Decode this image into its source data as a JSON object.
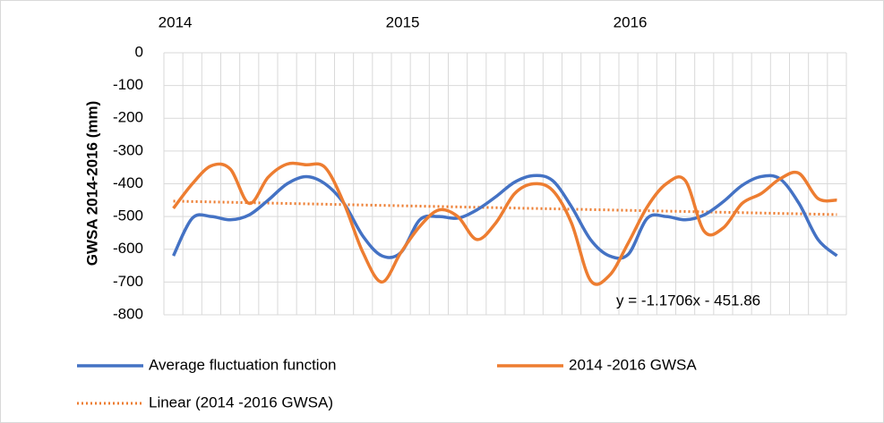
{
  "chart_data": {
    "type": "line",
    "y_label": "GWSA 2014-2016   (mm)",
    "categories": [
      "2014",
      null,
      null,
      null,
      null,
      null,
      null,
      null,
      null,
      null,
      null,
      null,
      "2015",
      null,
      null,
      null,
      null,
      null,
      null,
      null,
      null,
      null,
      null,
      null,
      "2016",
      null,
      null,
      null,
      null,
      null,
      null,
      null,
      null,
      null,
      null,
      null
    ],
    "series": [
      {
        "name": "Average fluctuation function",
        "color": "#4472c4",
        "values": [
          -620,
          -505,
          -500,
          -510,
          -495,
          -450,
          -400,
          -378,
          -400,
          -460,
          -560,
          -620,
          -610,
          -510,
          -500,
          -505,
          -480,
          -440,
          -395,
          -375,
          -390,
          -470,
          -570,
          -620,
          -615,
          -505,
          -500,
          -510,
          -495,
          -455,
          -405,
          -378,
          -385,
          -460,
          -570,
          -620
        ]
      },
      {
        "name": "2014 -2016 GWSA",
        "color": "#ed7d31",
        "values": [
          -475,
          -400,
          -345,
          -355,
          -460,
          -380,
          -340,
          -342,
          -350,
          -460,
          -610,
          -700,
          -610,
          -530,
          -480,
          -500,
          -570,
          -520,
          -430,
          -400,
          -420,
          -520,
          -695,
          -680,
          -580,
          -470,
          -400,
          -390,
          -545,
          -535,
          -460,
          -430,
          -385,
          -368,
          -445,
          -450
        ]
      }
    ],
    "trendline": {
      "name": "Linear (2014 -2016 GWSA)",
      "color": "#ed7d31",
      "slope": -1.1706,
      "intercept": -451.86,
      "equation": "y = -1.1706x - 451.86"
    },
    "ylim": [
      -800,
      0
    ],
    "yticks": [
      0,
      -100,
      -200,
      -300,
      -400,
      -500,
      -600,
      -700,
      -800
    ],
    "grid": true
  }
}
